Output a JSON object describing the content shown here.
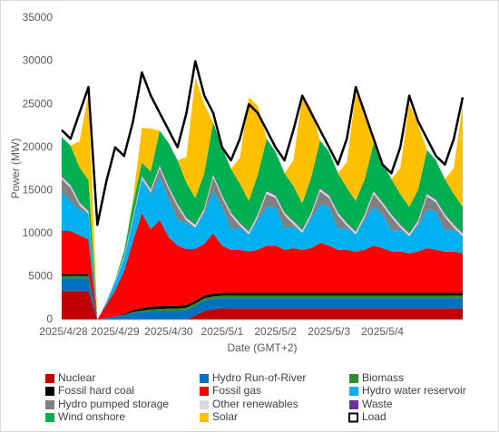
{
  "chart_data": {
    "type": "area",
    "stacked": true,
    "ylabel": "Power (MW)",
    "xlabel": "Date (GMT+2)",
    "ylim": [
      0,
      35000
    ],
    "yticks": [
      0,
      5000,
      10000,
      15000,
      20000,
      25000,
      30000,
      35000
    ],
    "grid": false,
    "legend": "bottom",
    "categories": [
      "2025/4/28",
      null,
      null,
      null,
      null,
      null,
      "2025/4/29",
      null,
      null,
      null,
      null,
      null,
      "2025/4/30",
      null,
      null,
      null,
      null,
      null,
      "2025/5/1",
      null,
      null,
      null,
      null,
      null,
      "2025/5/2",
      null,
      null,
      null,
      null,
      null,
      "2025/5/3",
      null,
      null,
      null,
      null,
      null,
      "2025/5/4",
      null,
      null,
      null,
      null,
      null,
      null,
      null,
      null,
      null
    ],
    "series": [
      {
        "name": "Nuclear",
        "color": "#c00000",
        "values": [
          3300,
          3300,
          3300,
          3300,
          0,
          0,
          0,
          0,
          0,
          0,
          0,
          0,
          0,
          0,
          0,
          500,
          1000,
          1200,
          1300,
          1300,
          1300,
          1300,
          1300,
          1300,
          1300,
          1300,
          1300,
          1300,
          1300,
          1300,
          1300,
          1300,
          1300,
          1300,
          1300,
          1300,
          1300,
          1300,
          1300,
          1300,
          1300,
          1300,
          1300,
          1300,
          1300,
          1300
        ]
      },
      {
        "name": "Hydro Run-of-River",
        "color": "#0070c0",
        "values": [
          1500,
          1500,
          1500,
          1500,
          0,
          200,
          400,
          500,
          800,
          900,
          1000,
          1000,
          1000,
          1000,
          1100,
          1100,
          1200,
          1200,
          1200,
          1200,
          1200,
          1200,
          1200,
          1200,
          1200,
          1200,
          1200,
          1200,
          1200,
          1200,
          1200,
          1200,
          1200,
          1200,
          1200,
          1200,
          1200,
          1200,
          1200,
          1200,
          1200,
          1200,
          1200,
          1200,
          1200,
          1200
        ]
      },
      {
        "name": "Biomass",
        "color": "#2e8b2e",
        "values": [
          300,
          300,
          300,
          300,
          0,
          0,
          0,
          50,
          100,
          150,
          200,
          250,
          300,
          300,
          300,
          300,
          300,
          300,
          300,
          300,
          300,
          300,
          300,
          300,
          300,
          300,
          300,
          300,
          300,
          300,
          300,
          300,
          300,
          300,
          300,
          300,
          300,
          300,
          300,
          300,
          300,
          300,
          300,
          300,
          300,
          300
        ]
      },
      {
        "name": "Fossil hard coal",
        "color": "#000000",
        "values": [
          200,
          200,
          200,
          200,
          0,
          0,
          0,
          100,
          200,
          300,
          300,
          300,
          300,
          300,
          300,
          300,
          300,
          300,
          300,
          300,
          300,
          300,
          300,
          300,
          300,
          300,
          300,
          300,
          300,
          300,
          300,
          300,
          300,
          300,
          300,
          300,
          300,
          300,
          300,
          300,
          300,
          300,
          300,
          300,
          300,
          300
        ]
      },
      {
        "name": "Fossil gas",
        "color": "#ff0000",
        "values": [
          5000,
          5000,
          4500,
          4000,
          0,
          1500,
          3000,
          5000,
          8000,
          11000,
          9000,
          10000,
          8000,
          7000,
          6500,
          6000,
          6000,
          7000,
          5500,
          5000,
          5000,
          4800,
          5000,
          5500,
          5500,
          5000,
          5200,
          5000,
          5200,
          5800,
          5500,
          5000,
          5000,
          4800,
          5000,
          5500,
          5200,
          4800,
          4800,
          4600,
          4800,
          5200,
          5000,
          4800,
          4800,
          4600
        ]
      },
      {
        "name": "Hydro water reservoir",
        "color": "#00b0f0",
        "values": [
          4500,
          3500,
          3000,
          3000,
          0,
          300,
          1000,
          1500,
          2500,
          4000,
          4000,
          5000,
          4500,
          3000,
          3000,
          2500,
          3500,
          5000,
          4500,
          2500,
          2500,
          2000,
          3500,
          4500,
          4500,
          2500,
          2500,
          2000,
          3500,
          4500,
          4500,
          2500,
          2500,
          2000,
          3500,
          4500,
          4000,
          2500,
          2500,
          2000,
          3000,
          4500,
          4500,
          2500,
          2500,
          2000
        ]
      },
      {
        "name": "Hydro pumped storage",
        "color": "#808080",
        "values": [
          1500,
          1500,
          500,
          0,
          0,
          0,
          0,
          0,
          0,
          0,
          300,
          1000,
          1000,
          1500,
          300,
          0,
          300,
          1500,
          1000,
          1500,
          300,
          0,
          300,
          1500,
          1000,
          1500,
          300,
          0,
          300,
          1500,
          1000,
          1500,
          300,
          0,
          300,
          1500,
          1000,
          1500,
          300,
          0,
          300,
          1500,
          1000,
          1500,
          300,
          0
        ]
      },
      {
        "name": "Other renewables",
        "color": "#d9d9d9",
        "values": [
          300,
          300,
          300,
          300,
          0,
          100,
          200,
          200,
          300,
          300,
          300,
          300,
          300,
          300,
          300,
          300,
          300,
          300,
          300,
          300,
          300,
          300,
          300,
          300,
          300,
          300,
          300,
          300,
          300,
          300,
          300,
          300,
          300,
          300,
          300,
          300,
          300,
          300,
          300,
          300,
          300,
          300,
          300,
          300,
          300,
          300
        ]
      },
      {
        "name": "Waste",
        "color": "#7030a0",
        "values": [
          100,
          100,
          100,
          100,
          0,
          0,
          50,
          100,
          100,
          100,
          100,
          100,
          100,
          100,
          100,
          100,
          100,
          100,
          100,
          100,
          100,
          100,
          100,
          100,
          100,
          100,
          100,
          100,
          100,
          100,
          100,
          100,
          100,
          100,
          100,
          100,
          100,
          100,
          100,
          100,
          100,
          100,
          100,
          100,
          100,
          100
        ]
      },
      {
        "name": "Wind onshore",
        "color": "#00b050",
        "values": [
          4500,
          4500,
          4000,
          3500,
          0,
          0,
          0,
          500,
          1500,
          1500,
          2000,
          4000,
          5000,
          5000,
          4000,
          3000,
          4000,
          6000,
          5500,
          5000,
          4500,
          3500,
          4500,
          6000,
          5000,
          4500,
          4000,
          3000,
          4000,
          5500,
          5000,
          4500,
          4000,
          3500,
          4000,
          5500,
          4500,
          4000,
          3500,
          3000,
          3500,
          5000,
          4500,
          4000,
          3500,
          3000
        ]
      },
      {
        "name": "Solar",
        "color": "#ffc000",
        "values": [
          0,
          0,
          3000,
          10000,
          0,
          0,
          0,
          0,
          500,
          4000,
          5000,
          0,
          0,
          0,
          3000,
          14000,
          8000,
          0,
          0,
          0,
          3000,
          12000,
          8000,
          0,
          0,
          0,
          3000,
          12500,
          8000,
          0,
          0,
          0,
          3000,
          12500,
          8000,
          0,
          0,
          0,
          3000,
          12000,
          7500,
          0,
          0,
          0,
          3000,
          12000
        ]
      },
      {
        "name": "Load",
        "color": "#000000",
        "kind": "line",
        "values": [
          22000,
          21000,
          24000,
          27000,
          11000,
          16000,
          20000,
          19000,
          23000,
          28700,
          26000,
          24000,
          22000,
          20000,
          24000,
          30000,
          26000,
          24000,
          20000,
          18500,
          21000,
          25000,
          24000,
          22000,
          20000,
          18500,
          22000,
          26000,
          24000,
          22000,
          20000,
          18000,
          21000,
          27000,
          24000,
          21000,
          18000,
          17000,
          20000,
          26000,
          23000,
          21000,
          19000,
          18000,
          21000,
          25800
        ]
      }
    ]
  }
}
